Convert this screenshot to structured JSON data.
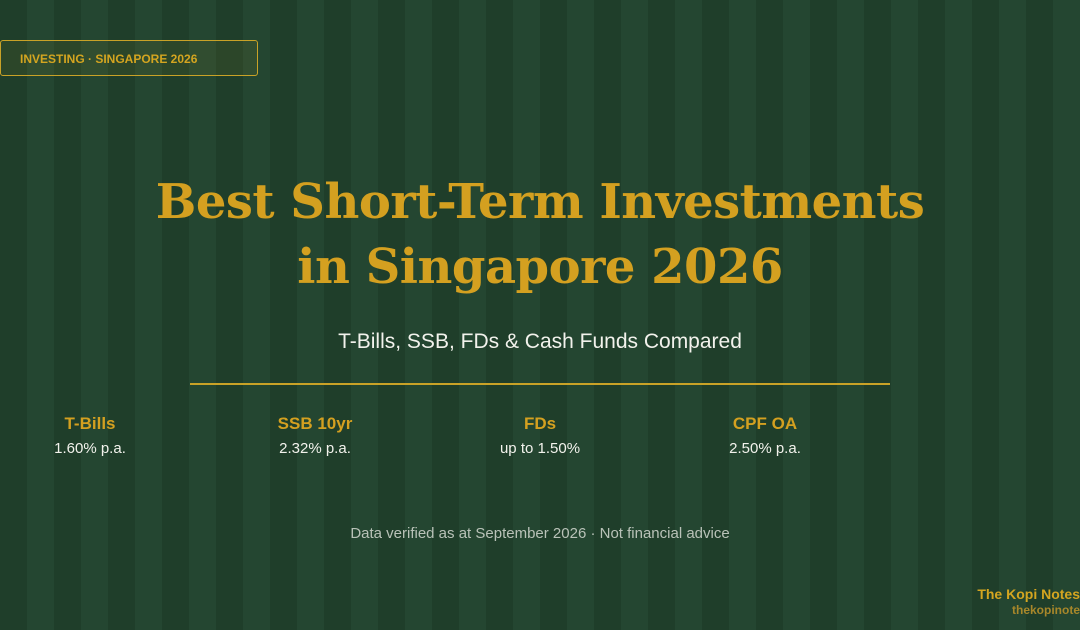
{
  "badge": "INVESTING · SINGAPORE 2026",
  "title_lines": [
    "Best Short-Term Investments",
    "in Singapore 2026"
  ],
  "subtitle": "T-Bills, SSB, FDs & Cash Funds Compared",
  "stats": [
    {
      "label": "T-Bills",
      "value": "1.60% p.a."
    },
    {
      "label": "SSB 10yr",
      "value": "2.32% p.a."
    },
    {
      "label": "FDs",
      "value": "up to 1.50%"
    },
    {
      "label": "CPF OA",
      "value": "2.50% p.a."
    }
  ],
  "note": "Data verified as at September 2026 · Not financial advice",
  "brand": {
    "name": "The Kopi Notes",
    "url": "thekopinote"
  }
}
